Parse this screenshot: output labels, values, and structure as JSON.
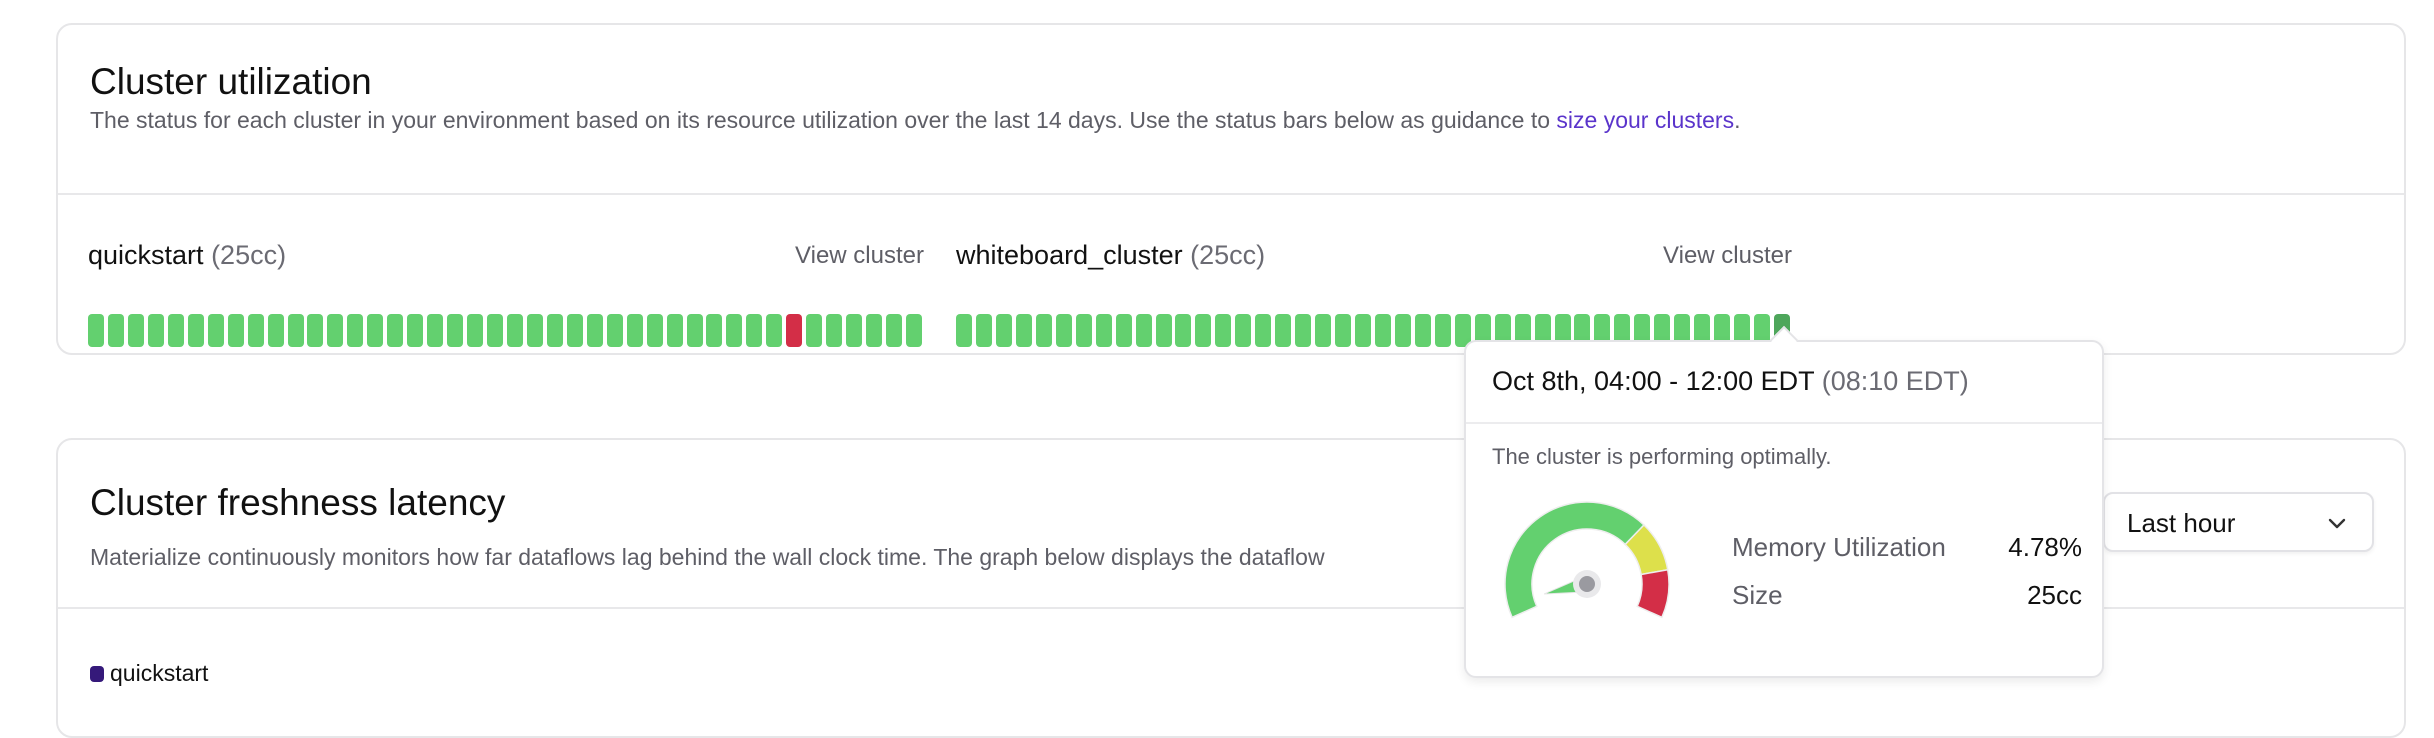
{
  "utilization": {
    "title": "Cluster utilization",
    "description": "The status for each cluster in your environment based on its resource utilization over the last 14 days. Use the status bars below as guidance to ",
    "link": "size your clusters",
    "description_end": ".",
    "status_colors": {
      "optimal": "#63d06f",
      "underprovisioned": "#d32e47",
      "hovered": "#4ea65b"
    },
    "clusters": [
      {
        "name": "quickstart",
        "size": "(25cc)",
        "view_label": "View cluster",
        "statuses": [
          "optimal",
          "optimal",
          "optimal",
          "optimal",
          "optimal",
          "optimal",
          "optimal",
          "optimal",
          "optimal",
          "optimal",
          "optimal",
          "optimal",
          "optimal",
          "optimal",
          "optimal",
          "optimal",
          "optimal",
          "optimal",
          "optimal",
          "optimal",
          "optimal",
          "optimal",
          "optimal",
          "optimal",
          "optimal",
          "optimal",
          "optimal",
          "optimal",
          "optimal",
          "optimal",
          "optimal",
          "optimal",
          "optimal",
          "optimal",
          "optimal",
          "underprovisioned",
          "optimal",
          "optimal",
          "optimal",
          "optimal",
          "optimal",
          "optimal"
        ],
        "hovered_index": null
      },
      {
        "name": "whiteboard_cluster",
        "size": "(25cc)",
        "view_label": "View cluster",
        "statuses": [
          "optimal",
          "optimal",
          "optimal",
          "optimal",
          "optimal",
          "optimal",
          "optimal",
          "optimal",
          "optimal",
          "optimal",
          "optimal",
          "optimal",
          "optimal",
          "optimal",
          "optimal",
          "optimal",
          "optimal",
          "optimal",
          "optimal",
          "optimal",
          "optimal",
          "optimal",
          "optimal",
          "optimal",
          "optimal",
          "optimal",
          "optimal",
          "optimal",
          "optimal",
          "optimal",
          "optimal",
          "optimal",
          "optimal",
          "optimal",
          "optimal",
          "optimal",
          "optimal",
          "optimal",
          "optimal",
          "optimal",
          "optimal",
          "optimal"
        ],
        "hovered_index": 41
      }
    ]
  },
  "tooltip": {
    "time_range": "Oct 8th, 04:00 - 12:00 EDT",
    "peak_time": "(08:10 EDT)",
    "status": "The cluster is performing optimally.",
    "memory_label": "Memory Utilization",
    "memory_value": "4.78%",
    "memory_percent": 4.78,
    "size_label": "Size",
    "size_value": "25cc",
    "gauge_colors": {
      "green": "#63d06f",
      "yellow": "#dde04b",
      "red": "#d32e47",
      "hub": "#9a9aa0"
    }
  },
  "freshness": {
    "title": "Cluster freshness latency",
    "description": "Materialize continuously monitors how far dataflows lag behind the wall clock time. The graph below displays the dataflow",
    "range_select": "Last hour",
    "legend": [
      {
        "label": "quickstart",
        "color": "#35197a"
      }
    ]
  }
}
